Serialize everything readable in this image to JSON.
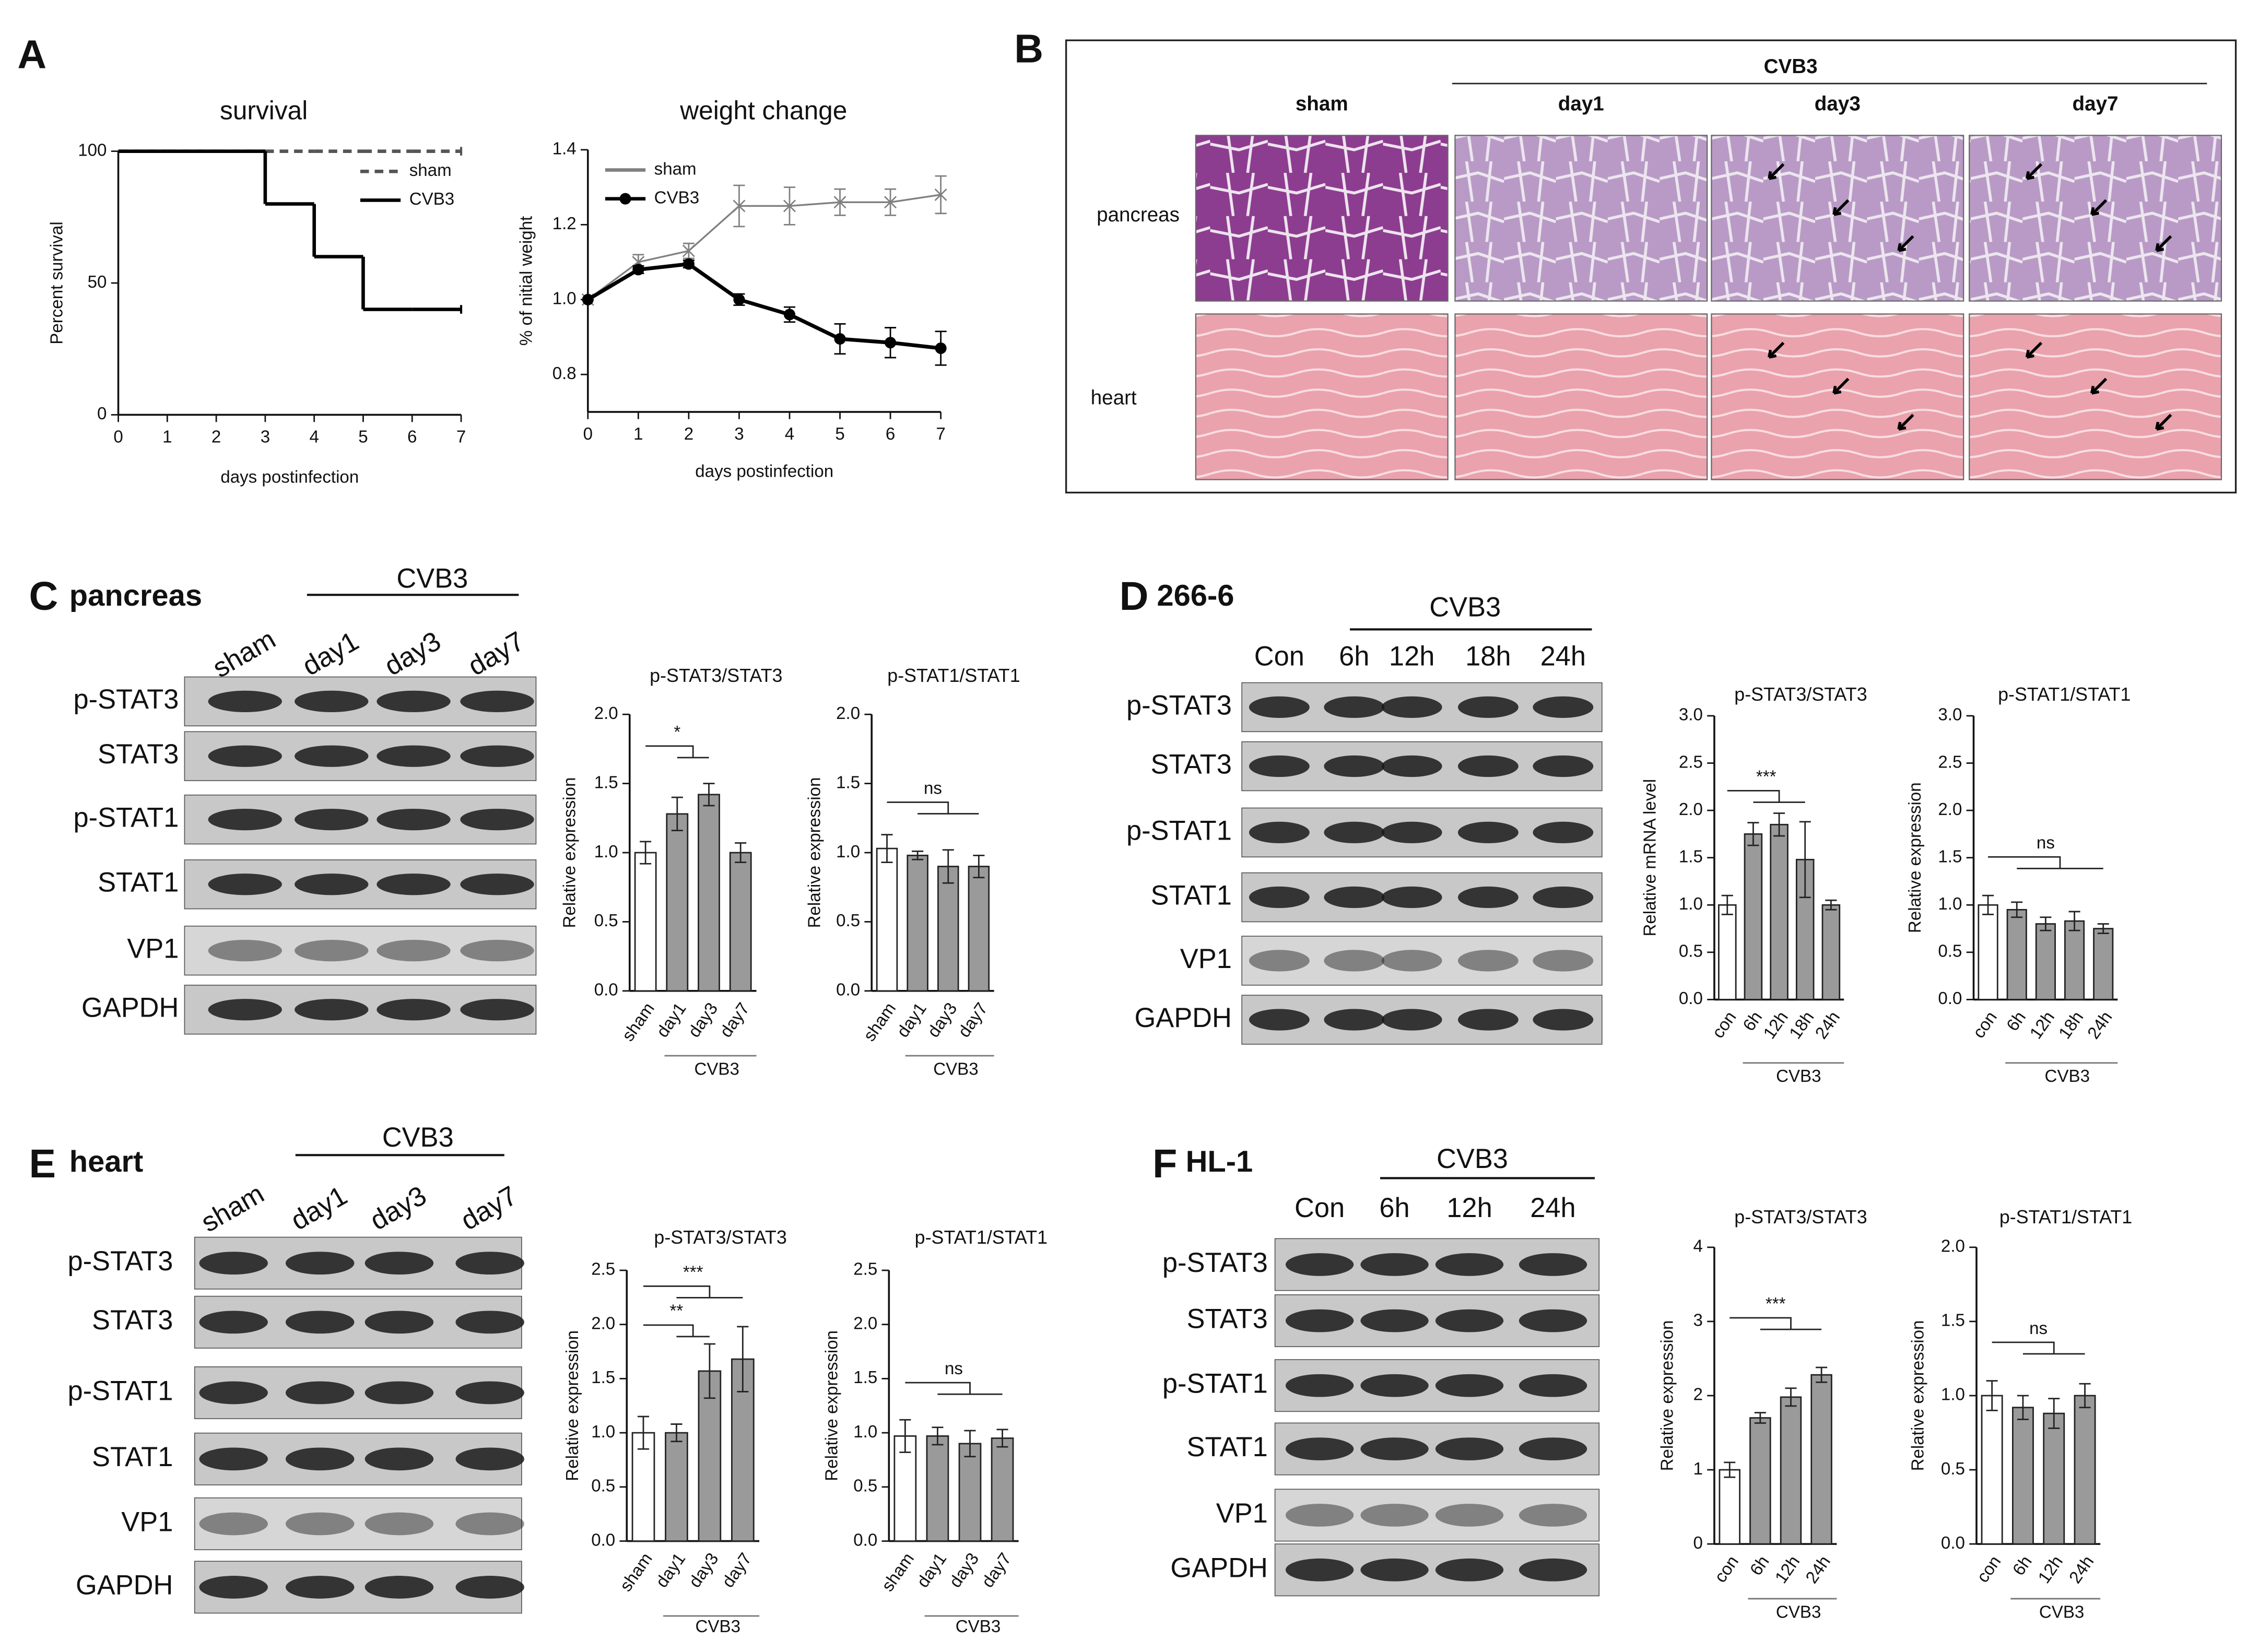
{
  "panel_letters": [
    "A",
    "B",
    "C",
    "D",
    "E",
    "F"
  ],
  "histology": {
    "group": "CVB3",
    "columns": [
      "sham",
      "day1",
      "day3",
      "day7"
    ],
    "rows": [
      "pancreas",
      "heart"
    ]
  },
  "blots": [
    {
      "title": "pancreas",
      "group": "CVB3",
      "lanes": [
        "sham",
        "day1",
        "day3",
        "day7"
      ],
      "rows": [
        "p-STAT3",
        "STAT3",
        "p-STAT1",
        "STAT1",
        "VP1",
        "GAPDH"
      ]
    },
    {
      "title": "266-6",
      "group": "CVB3",
      "lanes": [
        "Con",
        "6h",
        "12h",
        "18h",
        "24h"
      ],
      "rows": [
        "p-STAT3",
        "STAT3",
        "p-STAT1",
        "STAT1",
        "VP1",
        "GAPDH"
      ]
    },
    {
      "title": "heart",
      "group": "CVB3",
      "lanes": [
        "sham",
        "day1",
        "day3",
        "day7"
      ],
      "rows": [
        "p-STAT3",
        "STAT3",
        "p-STAT1",
        "STAT1",
        "VP1",
        "GAPDH"
      ]
    },
    {
      "title": "HL-1",
      "group": "CVB3",
      "lanes": [
        "Con",
        "6h",
        "12h",
        "24h"
      ],
      "rows": [
        "p-STAT3",
        "STAT3",
        "p-STAT1",
        "STAT1",
        "VP1",
        "GAPDH"
      ]
    }
  ],
  "chart_data": [
    {
      "type": "step",
      "title": "survival",
      "x_label": "days postinfection",
      "y_label": "Percent survival",
      "x": [
        0,
        1,
        2,
        3,
        4,
        5,
        6,
        7
      ],
      "series": [
        {
          "name": "sham",
          "color": "#555555",
          "dashed": true,
          "values": [
            100,
            100,
            100,
            100,
            100,
            100,
            100,
            100
          ]
        },
        {
          "name": "CVB3",
          "color": "#000000",
          "dashed": false,
          "values": [
            100,
            100,
            100,
            80,
            60,
            40,
            40,
            40
          ]
        }
      ],
      "xlim": [
        0,
        7
      ],
      "ylim": [
        0,
        100
      ],
      "xticks": [
        0,
        1,
        2,
        3,
        4,
        5,
        6,
        7
      ],
      "yticks": [
        0,
        50,
        100
      ],
      "legend": "upper right"
    },
    {
      "type": "line",
      "title": "weight change",
      "x_label": "days postinfection",
      "y_label": "% of nitial weight",
      "x": [
        0,
        1,
        2,
        3,
        4,
        5,
        6,
        7
      ],
      "series": [
        {
          "name": "sham",
          "color": "#808080",
          "marker": "x",
          "values": [
            1.0,
            1.1,
            1.13,
            1.25,
            1.25,
            1.26,
            1.26,
            1.28
          ],
          "errors": [
            0,
            0.02,
            0.02,
            0.055,
            0.05,
            0.035,
            0.035,
            0.05
          ]
        },
        {
          "name": "CVB3",
          "color": "#000000",
          "marker": "o",
          "values": [
            1.0,
            1.08,
            1.095,
            1.0,
            0.96,
            0.895,
            0.885,
            0.87
          ],
          "errors": [
            0,
            0.01,
            0.01,
            0.015,
            0.02,
            0.04,
            0.04,
            0.045
          ]
        }
      ],
      "xlim": [
        0,
        7
      ],
      "ylim": [
        0.7,
        1.4
      ],
      "xticks": [
        0,
        1,
        2,
        3,
        4,
        5,
        6,
        7
      ],
      "yticks": [
        0.8,
        {
          "value": 1,
          "label": "1.0"
        },
        1.2,
        1.4
      ],
      "legend": "upper left"
    },
    {
      "type": "bar",
      "title": "p-STAT3/STAT3",
      "y_label": "Relative expression",
      "categories": [
        "sham",
        "day1",
        "day3",
        "day7"
      ],
      "group_label": "CVB3",
      "values": [
        1.0,
        1.28,
        1.42,
        1.0
      ],
      "errors": [
        0.08,
        0.12,
        0.08,
        0.07
      ],
      "colors": [
        "#ffffff",
        "#9a9a9a",
        "#9a9a9a",
        "#9a9a9a"
      ],
      "ylim": [
        0,
        2
      ],
      "yticks": [
        {
          "value": 0,
          "label": "0.0"
        },
        0.5,
        {
          "value": 1,
          "label": "1.0"
        },
        1.5,
        {
          "value": 2,
          "label": "2.0"
        }
      ],
      "annotations": [
        "*"
      ]
    },
    {
      "type": "bar",
      "title": "p-STAT1/STAT1",
      "y_label": "Relative expression",
      "categories": [
        "sham",
        "day1",
        "day3",
        "day7"
      ],
      "group_label": "CVB3",
      "values": [
        1.03,
        0.98,
        0.9,
        0.9
      ],
      "errors": [
        0.1,
        0.03,
        0.12,
        0.08
      ],
      "colors": [
        "#ffffff",
        "#9a9a9a",
        "#9a9a9a",
        "#9a9a9a"
      ],
      "ylim": [
        0,
        2
      ],
      "yticks": [
        {
          "value": 0,
          "label": "0.0"
        },
        0.5,
        {
          "value": 1,
          "label": "1.0"
        },
        1.5,
        {
          "value": 2,
          "label": "2.0"
        }
      ],
      "annotations": [
        "ns"
      ]
    },
    {
      "type": "bar",
      "title": "p-STAT3/STAT3",
      "y_label": "Relative mRNA level",
      "categories": [
        "con",
        "6h",
        "12h",
        "18h",
        "24h"
      ],
      "group_label": "CVB3",
      "values": [
        1.0,
        1.75,
        1.85,
        1.48,
        1.0
      ],
      "errors": [
        0.1,
        0.12,
        0.12,
        0.4,
        0.05
      ],
      "colors": [
        "#ffffff",
        "#9a9a9a",
        "#9a9a9a",
        "#9a9a9a",
        "#9a9a9a"
      ],
      "ylim": [
        0,
        3
      ],
      "yticks": [
        {
          "value": 0,
          "label": "0.0"
        },
        0.5,
        {
          "value": 1,
          "label": "1.0"
        },
        1.5,
        {
          "value": 2,
          "label": "2.0"
        },
        2.5,
        {
          "value": 3,
          "label": "3.0"
        }
      ],
      "annotations": [
        "***"
      ]
    },
    {
      "type": "bar",
      "title": "p-STAT1/STAT1",
      "y_label": "Relative expression",
      "categories": [
        "con",
        "6h",
        "12h",
        "18h",
        "24h"
      ],
      "group_label": "CVB3",
      "values": [
        1.0,
        0.95,
        0.8,
        0.83,
        0.75
      ],
      "errors": [
        0.1,
        0.08,
        0.07,
        0.1,
        0.05
      ],
      "colors": [
        "#ffffff",
        "#9a9a9a",
        "#9a9a9a",
        "#9a9a9a",
        "#9a9a9a"
      ],
      "ylim": [
        0,
        3
      ],
      "yticks": [
        {
          "value": 0,
          "label": "0.0"
        },
        0.5,
        {
          "value": 1,
          "label": "1.0"
        },
        1.5,
        {
          "value": 2,
          "label": "2.0"
        },
        2.5,
        {
          "value": 3,
          "label": "3.0"
        }
      ],
      "annotations": [
        "ns"
      ]
    },
    {
      "type": "bar",
      "title": "p-STAT3/STAT3",
      "y_label": "Relative expression",
      "categories": [
        "sham",
        "day1",
        "day3",
        "day7"
      ],
      "group_label": "CVB3",
      "values": [
        1.0,
        1.0,
        1.57,
        1.68
      ],
      "errors": [
        0.15,
        0.08,
        0.25,
        0.3
      ],
      "colors": [
        "#ffffff",
        "#9a9a9a",
        "#9a9a9a",
        "#9a9a9a"
      ],
      "ylim": [
        0,
        2.5
      ],
      "yticks": [
        {
          "value": 0,
          "label": "0.0"
        },
        0.5,
        {
          "value": 1,
          "label": "1.0"
        },
        1.5,
        {
          "value": 2,
          "label": "2.0"
        },
        2.5
      ],
      "annotations": [
        "**",
        "***"
      ]
    },
    {
      "type": "bar",
      "title": "p-STAT1/STAT1",
      "y_label": "Relative expression",
      "categories": [
        "sham",
        "day1",
        "day3",
        "day7"
      ],
      "group_label": "CVB3",
      "values": [
        0.97,
        0.97,
        0.9,
        0.95
      ],
      "errors": [
        0.15,
        0.08,
        0.12,
        0.08
      ],
      "colors": [
        "#ffffff",
        "#9a9a9a",
        "#9a9a9a",
        "#9a9a9a"
      ],
      "ylim": [
        0,
        2.5
      ],
      "yticks": [
        {
          "value": 0,
          "label": "0.0"
        },
        0.5,
        {
          "value": 1,
          "label": "1.0"
        },
        1.5,
        {
          "value": 2,
          "label": "2.0"
        },
        2.5
      ],
      "annotations": [
        "ns"
      ]
    },
    {
      "type": "bar",
      "title": "p-STAT3/STAT3",
      "y_label": "Relative expression",
      "categories": [
        "con",
        "6h",
        "12h",
        "24h"
      ],
      "group_label": "CVB3",
      "values": [
        1.0,
        1.7,
        1.98,
        2.28
      ],
      "errors": [
        0.1,
        0.07,
        0.12,
        0.1
      ],
      "colors": [
        "#ffffff",
        "#9a9a9a",
        "#9a9a9a",
        "#9a9a9a"
      ],
      "ylim": [
        0,
        4
      ],
      "yticks": [
        0,
        1,
        2,
        3,
        4
      ],
      "annotations": [
        "***"
      ]
    },
    {
      "type": "bar",
      "title": "p-STAT1/STAT1",
      "y_label": "Relative expression",
      "categories": [
        "con",
        "6h",
        "12h",
        "24h"
      ],
      "group_label": "CVB3",
      "values": [
        1.0,
        0.92,
        0.88,
        1.0
      ],
      "errors": [
        0.1,
        0.08,
        0.1,
        0.08
      ],
      "colors": [
        "#ffffff",
        "#9a9a9a",
        "#9a9a9a",
        "#9a9a9a"
      ],
      "ylim": [
        0,
        2
      ],
      "yticks": [
        {
          "value": 0,
          "label": "0.0"
        },
        0.5,
        {
          "value": 1,
          "label": "1.0"
        },
        1.5,
        {
          "value": 2,
          "label": "2.0"
        }
      ],
      "annotations": [
        "ns"
      ]
    }
  ]
}
